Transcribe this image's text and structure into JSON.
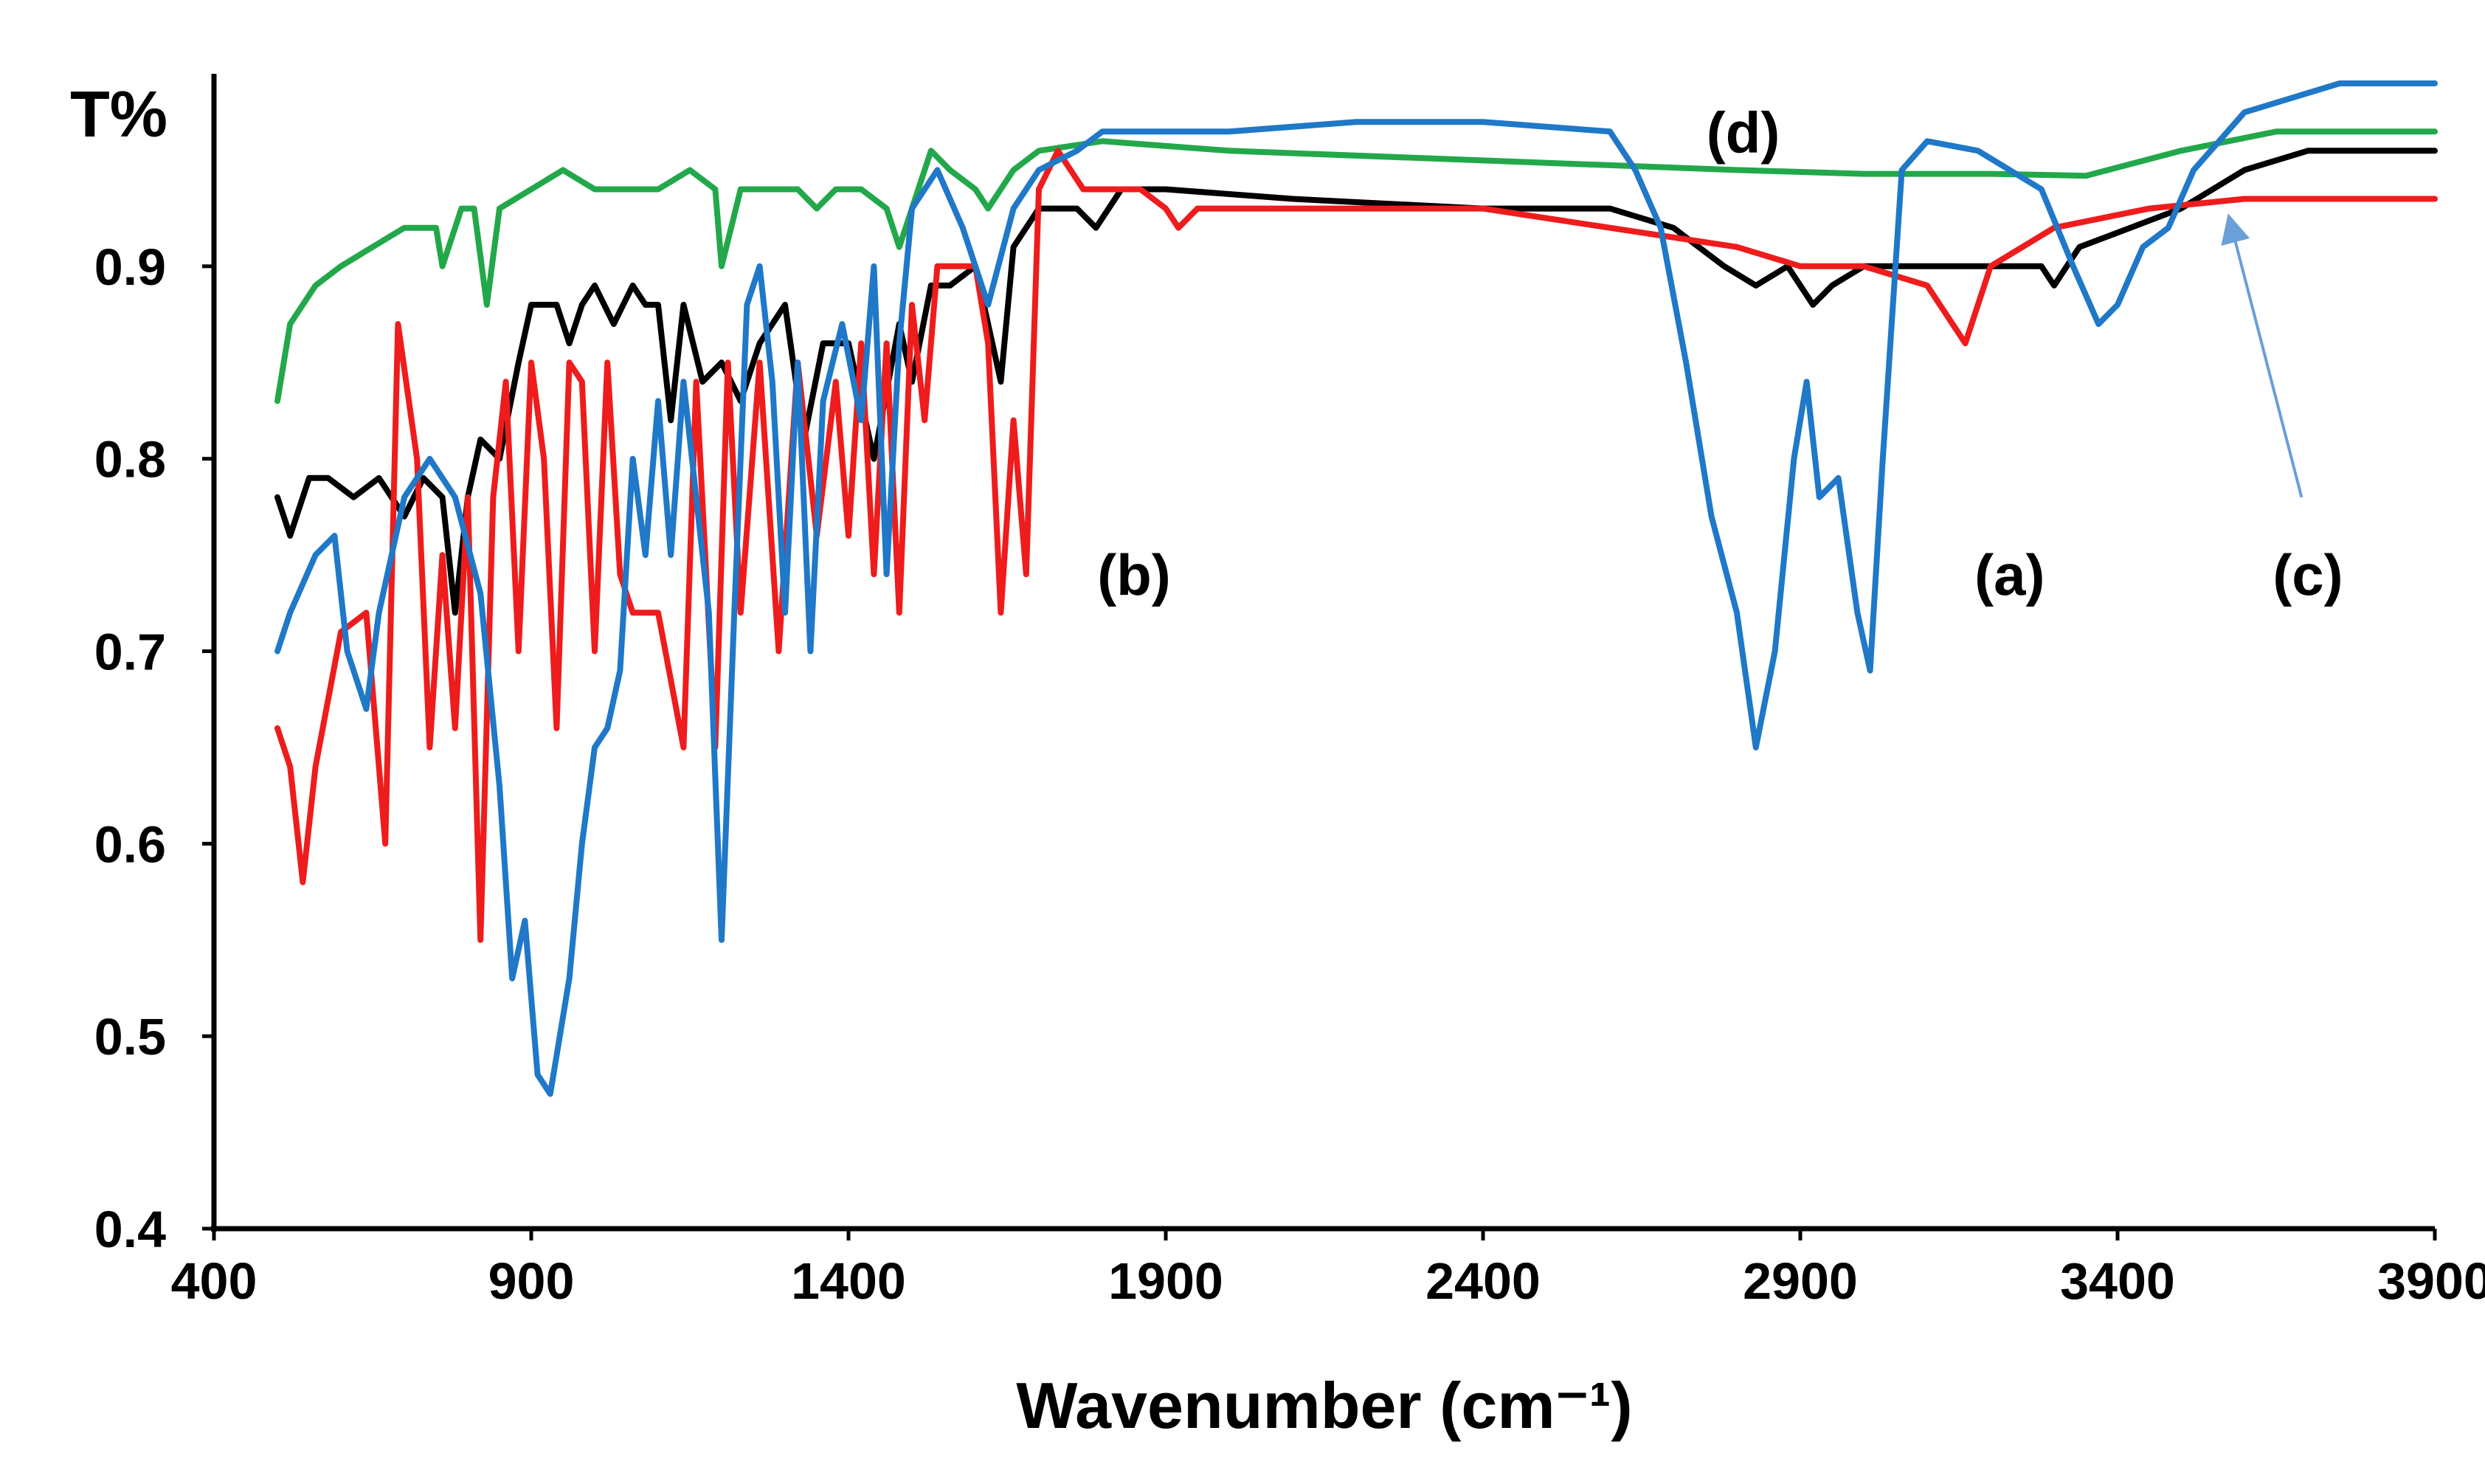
{
  "chart_data": {
    "type": "line",
    "title": "",
    "xlabel": "Wavenumber (cm⁻¹)",
    "ylabel": "T%",
    "xlim": [
      400,
      3900
    ],
    "ylim": [
      0.4,
      1.0
    ],
    "xticks": [
      400,
      900,
      1400,
      1900,
      2400,
      2900,
      3400,
      3900
    ],
    "yticks": [
      0.4,
      0.5,
      0.6,
      0.7,
      0.8,
      0.9
    ],
    "xtick_labels": [
      "400",
      "900",
      "1400",
      "1900",
      "2400",
      "2900",
      "3400",
      "3900"
    ],
    "ytick_labels": [
      "0.4",
      "0.5",
      "0.6",
      "0.7",
      "0.8",
      "0.9"
    ],
    "grid": false,
    "legend": "none",
    "series": [
      {
        "name": "green",
        "color": "#22a84a",
        "points": [
          [
            500,
            0.83
          ],
          [
            520,
            0.87
          ],
          [
            560,
            0.89
          ],
          [
            600,
            0.9
          ],
          [
            650,
            0.91
          ],
          [
            700,
            0.92
          ],
          [
            750,
            0.92
          ],
          [
            760,
            0.9
          ],
          [
            790,
            0.93
          ],
          [
            810,
            0.93
          ],
          [
            830,
            0.88
          ],
          [
            850,
            0.93
          ],
          [
            900,
            0.94
          ],
          [
            950,
            0.95
          ],
          [
            1000,
            0.94
          ],
          [
            1050,
            0.94
          ],
          [
            1100,
            0.94
          ],
          [
            1150,
            0.95
          ],
          [
            1190,
            0.94
          ],
          [
            1200,
            0.9
          ],
          [
            1230,
            0.94
          ],
          [
            1280,
            0.94
          ],
          [
            1320,
            0.94
          ],
          [
            1350,
            0.93
          ],
          [
            1380,
            0.94
          ],
          [
            1420,
            0.94
          ],
          [
            1460,
            0.93
          ],
          [
            1480,
            0.91
          ],
          [
            1500,
            0.93
          ],
          [
            1530,
            0.96
          ],
          [
            1560,
            0.95
          ],
          [
            1600,
            0.94
          ],
          [
            1620,
            0.93
          ],
          [
            1660,
            0.95
          ],
          [
            1700,
            0.96
          ],
          [
            1800,
            0.965
          ],
          [
            2000,
            0.96
          ],
          [
            2400,
            0.955
          ],
          [
            2800,
            0.95
          ],
          [
            3000,
            0.948
          ],
          [
            3200,
            0.948
          ],
          [
            3350,
            0.947
          ],
          [
            3500,
            0.96
          ],
          [
            3650,
            0.97
          ],
          [
            3900,
            0.97
          ]
        ]
      },
      {
        "name": "black",
        "color": "#000000",
        "points": [
          [
            500,
            0.78
          ],
          [
            520,
            0.76
          ],
          [
            550,
            0.79
          ],
          [
            580,
            0.79
          ],
          [
            620,
            0.78
          ],
          [
            660,
            0.79
          ],
          [
            700,
            0.77
          ],
          [
            730,
            0.79
          ],
          [
            760,
            0.78
          ],
          [
            780,
            0.72
          ],
          [
            800,
            0.78
          ],
          [
            820,
            0.81
          ],
          [
            850,
            0.8
          ],
          [
            880,
            0.85
          ],
          [
            900,
            0.88
          ],
          [
            940,
            0.88
          ],
          [
            960,
            0.86
          ],
          [
            980,
            0.88
          ],
          [
            1000,
            0.89
          ],
          [
            1030,
            0.87
          ],
          [
            1060,
            0.89
          ],
          [
            1080,
            0.88
          ],
          [
            1100,
            0.88
          ],
          [
            1120,
            0.82
          ],
          [
            1140,
            0.88
          ],
          [
            1170,
            0.84
          ],
          [
            1200,
            0.85
          ],
          [
            1230,
            0.83
          ],
          [
            1260,
            0.86
          ],
          [
            1300,
            0.88
          ],
          [
            1330,
            0.81
          ],
          [
            1360,
            0.86
          ],
          [
            1400,
            0.86
          ],
          [
            1440,
            0.8
          ],
          [
            1480,
            0.87
          ],
          [
            1500,
            0.84
          ],
          [
            1530,
            0.89
          ],
          [
            1560,
            0.89
          ],
          [
            1600,
            0.9
          ],
          [
            1640,
            0.84
          ],
          [
            1660,
            0.91
          ],
          [
            1700,
            0.93
          ],
          [
            1760,
            0.93
          ],
          [
            1790,
            0.92
          ],
          [
            1830,
            0.94
          ],
          [
            1900,
            0.94
          ],
          [
            2100,
            0.935
          ],
          [
            2400,
            0.93
          ],
          [
            2600,
            0.93
          ],
          [
            2700,
            0.92
          ],
          [
            2780,
            0.9
          ],
          [
            2830,
            0.89
          ],
          [
            2880,
            0.9
          ],
          [
            2920,
            0.88
          ],
          [
            2950,
            0.89
          ],
          [
            3000,
            0.9
          ],
          [
            3100,
            0.9
          ],
          [
            3200,
            0.9
          ],
          [
            3280,
            0.9
          ],
          [
            3300,
            0.89
          ],
          [
            3340,
            0.91
          ],
          [
            3420,
            0.92
          ],
          [
            3500,
            0.93
          ],
          [
            3600,
            0.95
          ],
          [
            3700,
            0.96
          ],
          [
            3900,
            0.96
          ]
        ]
      },
      {
        "name": "red",
        "color": "#ee1c1c",
        "points": [
          [
            500,
            0.66
          ],
          [
            520,
            0.64
          ],
          [
            540,
            0.58
          ],
          [
            560,
            0.64
          ],
          [
            600,
            0.71
          ],
          [
            640,
            0.72
          ],
          [
            670,
            0.6
          ],
          [
            690,
            0.87
          ],
          [
            720,
            0.8
          ],
          [
            740,
            0.65
          ],
          [
            760,
            0.75
          ],
          [
            780,
            0.66
          ],
          [
            800,
            0.78
          ],
          [
            820,
            0.55
          ],
          [
            840,
            0.78
          ],
          [
            860,
            0.84
          ],
          [
            880,
            0.7
          ],
          [
            900,
            0.85
          ],
          [
            920,
            0.8
          ],
          [
            940,
            0.66
          ],
          [
            960,
            0.85
          ],
          [
            980,
            0.84
          ],
          [
            1000,
            0.7
          ],
          [
            1020,
            0.85
          ],
          [
            1040,
            0.74
          ],
          [
            1060,
            0.72
          ],
          [
            1100,
            0.72
          ],
          [
            1140,
            0.65
          ],
          [
            1160,
            0.84
          ],
          [
            1190,
            0.65
          ],
          [
            1210,
            0.85
          ],
          [
            1230,
            0.72
          ],
          [
            1260,
            0.85
          ],
          [
            1290,
            0.7
          ],
          [
            1320,
            0.85
          ],
          [
            1350,
            0.76
          ],
          [
            1380,
            0.84
          ],
          [
            1400,
            0.76
          ],
          [
            1420,
            0.86
          ],
          [
            1440,
            0.74
          ],
          [
            1460,
            0.86
          ],
          [
            1480,
            0.72
          ],
          [
            1500,
            0.88
          ],
          [
            1520,
            0.82
          ],
          [
            1540,
            0.9
          ],
          [
            1560,
            0.9
          ],
          [
            1600,
            0.9
          ],
          [
            1620,
            0.86
          ],
          [
            1640,
            0.72
          ],
          [
            1660,
            0.82
          ],
          [
            1680,
            0.74
          ],
          [
            1700,
            0.94
          ],
          [
            1730,
            0.96
          ],
          [
            1770,
            0.94
          ],
          [
            1800,
            0.94
          ],
          [
            1860,
            0.94
          ],
          [
            1900,
            0.93
          ],
          [
            1920,
            0.92
          ],
          [
            1950,
            0.93
          ],
          [
            2100,
            0.93
          ],
          [
            2400,
            0.93
          ],
          [
            2600,
            0.92
          ],
          [
            2800,
            0.91
          ],
          [
            2900,
            0.9
          ],
          [
            3000,
            0.9
          ],
          [
            3100,
            0.89
          ],
          [
            3160,
            0.86
          ],
          [
            3200,
            0.9
          ],
          [
            3300,
            0.92
          ],
          [
            3450,
            0.93
          ],
          [
            3600,
            0.935
          ],
          [
            3900,
            0.935
          ]
        ]
      },
      {
        "name": "blue",
        "color": "#1f78c8",
        "points": [
          [
            500,
            0.7
          ],
          [
            520,
            0.72
          ],
          [
            560,
            0.75
          ],
          [
            590,
            0.76
          ],
          [
            610,
            0.7
          ],
          [
            640,
            0.67
          ],
          [
            660,
            0.72
          ],
          [
            700,
            0.78
          ],
          [
            740,
            0.8
          ],
          [
            780,
            0.78
          ],
          [
            820,
            0.73
          ],
          [
            850,
            0.63
          ],
          [
            870,
            0.53
          ],
          [
            890,
            0.56
          ],
          [
            910,
            0.48
          ],
          [
            930,
            0.47
          ],
          [
            960,
            0.53
          ],
          [
            980,
            0.6
          ],
          [
            1000,
            0.65
          ],
          [
            1020,
            0.66
          ],
          [
            1040,
            0.69
          ],
          [
            1060,
            0.8
          ],
          [
            1080,
            0.75
          ],
          [
            1100,
            0.83
          ],
          [
            1120,
            0.75
          ],
          [
            1140,
            0.84
          ],
          [
            1160,
            0.78
          ],
          [
            1180,
            0.72
          ],
          [
            1200,
            0.55
          ],
          [
            1220,
            0.72
          ],
          [
            1240,
            0.88
          ],
          [
            1260,
            0.9
          ],
          [
            1280,
            0.84
          ],
          [
            1300,
            0.72
          ],
          [
            1320,
            0.85
          ],
          [
            1340,
            0.7
          ],
          [
            1360,
            0.83
          ],
          [
            1390,
            0.87
          ],
          [
            1420,
            0.82
          ],
          [
            1440,
            0.9
          ],
          [
            1460,
            0.74
          ],
          [
            1480,
            0.86
          ],
          [
            1500,
            0.93
          ],
          [
            1540,
            0.95
          ],
          [
            1580,
            0.92
          ],
          [
            1620,
            0.88
          ],
          [
            1660,
            0.93
          ],
          [
            1700,
            0.95
          ],
          [
            1760,
            0.96
          ],
          [
            1800,
            0.97
          ],
          [
            2000,
            0.97
          ],
          [
            2200,
            0.975
          ],
          [
            2400,
            0.975
          ],
          [
            2600,
            0.97
          ],
          [
            2640,
            0.95
          ],
          [
            2680,
            0.92
          ],
          [
            2720,
            0.85
          ],
          [
            2760,
            0.77
          ],
          [
            2800,
            0.72
          ],
          [
            2830,
            0.65
          ],
          [
            2860,
            0.7
          ],
          [
            2890,
            0.8
          ],
          [
            2910,
            0.84
          ],
          [
            2930,
            0.78
          ],
          [
            2960,
            0.79
          ],
          [
            2990,
            0.72
          ],
          [
            3010,
            0.69
          ],
          [
            3030,
            0.8
          ],
          [
            3060,
            0.95
          ],
          [
            3100,
            0.965
          ],
          [
            3180,
            0.96
          ],
          [
            3280,
            0.94
          ],
          [
            3330,
            0.9
          ],
          [
            3370,
            0.87
          ],
          [
            3400,
            0.88
          ],
          [
            3440,
            0.91
          ],
          [
            3480,
            0.92
          ],
          [
            3520,
            0.95
          ],
          [
            3600,
            0.98
          ],
          [
            3750,
            0.995
          ],
          [
            3900,
            0.995
          ]
        ]
      }
    ],
    "annotations": [
      {
        "label": "(d)",
        "x": 2810,
        "y": 0.97
      },
      {
        "label": "(b)",
        "x": 1850,
        "y": 0.74
      },
      {
        "label": "(a)",
        "x": 3230,
        "y": 0.74
      },
      {
        "label": "(c)",
        "x": 3700,
        "y": 0.74
      }
    ],
    "arrow": {
      "from": [
        3690,
        0.78
      ],
      "to": [
        3580,
        0.92
      ],
      "color": "#6a9fd8"
    }
  }
}
